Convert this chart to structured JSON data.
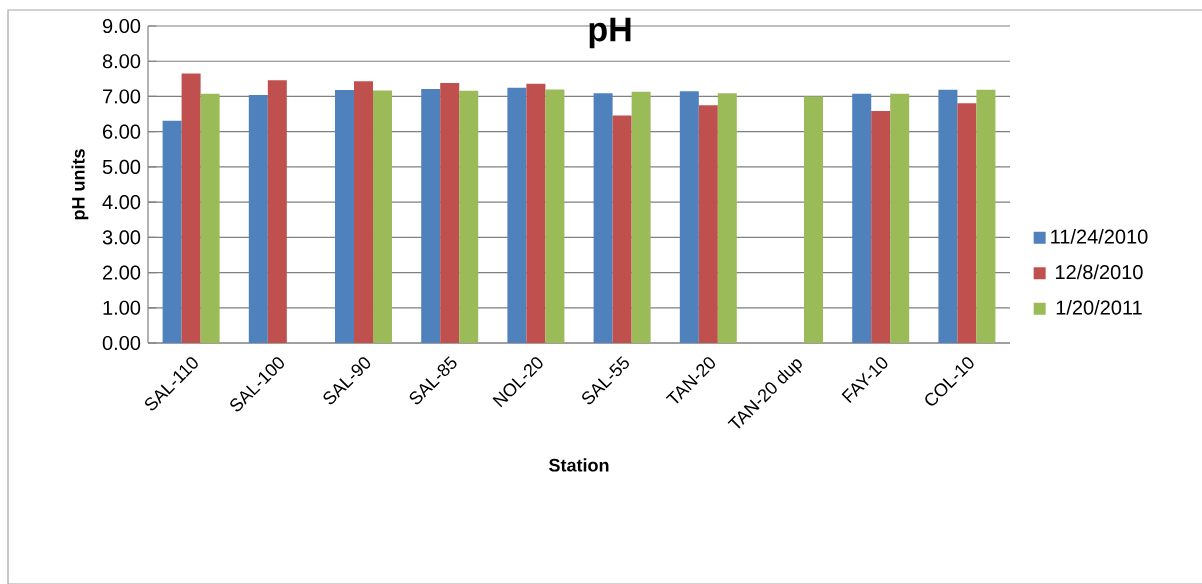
{
  "chart_data": {
    "type": "bar",
    "title": "pH",
    "xlabel": "Station",
    "ylabel": "pH units",
    "categories": [
      "SAL-110",
      "SAL-100",
      "SAL-90",
      "SAL-85",
      "NOL-20",
      "SAL-55",
      "TAN-20",
      "TAN-20 dup",
      "FAY-10",
      "COL-10"
    ],
    "series": [
      {
        "name": "11/24/2010",
        "color": "#4f81bd",
        "values": [
          6.31,
          7.04,
          7.18,
          7.21,
          7.25,
          7.09,
          7.15,
          null,
          7.08,
          7.19
        ]
      },
      {
        "name": "12/8/2010",
        "color": "#c0504d",
        "values": [
          7.65,
          7.46,
          7.43,
          7.38,
          7.36,
          6.46,
          6.75,
          null,
          6.59,
          6.81
        ]
      },
      {
        "name": "1/20/2011",
        "color": "#9bbb59",
        "values": [
          7.08,
          null,
          7.17,
          7.16,
          7.2,
          7.13,
          7.09,
          7.0,
          7.08,
          7.19
        ]
      }
    ],
    "ylim": [
      0,
      9
    ],
    "yticks": [
      {
        "value": 0,
        "label": "0.00"
      },
      {
        "value": 1,
        "label": "1.00"
      },
      {
        "value": 2,
        "label": "2.00"
      },
      {
        "value": 3,
        "label": "3.00"
      },
      {
        "value": 4,
        "label": "4.00"
      },
      {
        "value": 5,
        "label": "5.00"
      },
      {
        "value": 6,
        "label": "6.00"
      },
      {
        "value": 7,
        "label": "7.00"
      },
      {
        "value": 8,
        "label": "8.00"
      },
      {
        "value": 9,
        "label": "9.00"
      }
    ],
    "grid": "y",
    "legend": "right"
  }
}
